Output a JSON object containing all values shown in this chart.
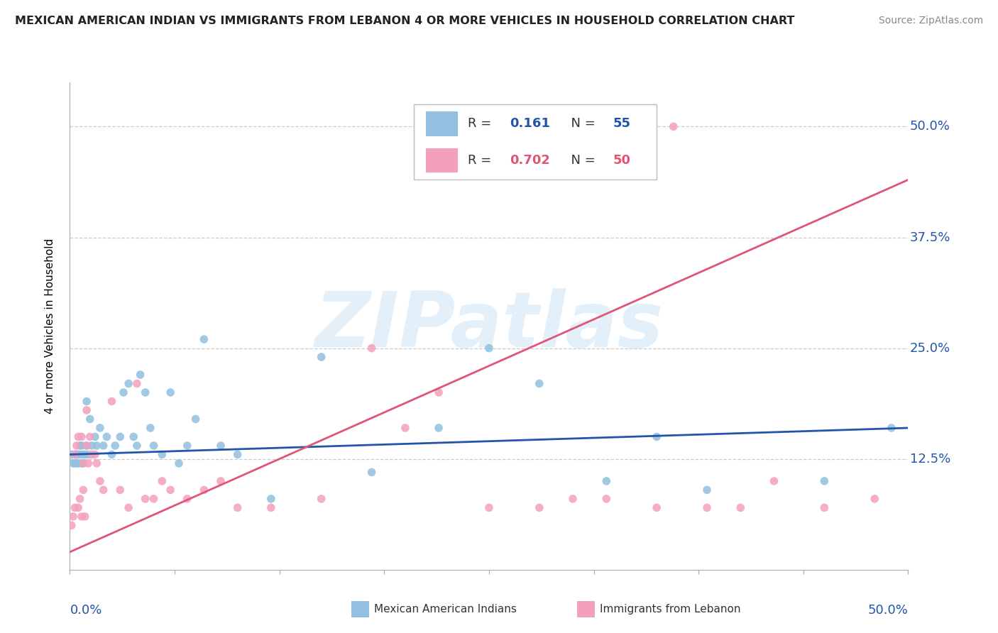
{
  "title": "MEXICAN AMERICAN INDIAN VS IMMIGRANTS FROM LEBANON 4 OR MORE VEHICLES IN HOUSEHOLD CORRELATION CHART",
  "source": "Source: ZipAtlas.com",
  "ylabel": "4 or more Vehicles in Household",
  "legend_blue_R": "0.161",
  "legend_blue_N": "55",
  "legend_pink_R": "0.702",
  "legend_pink_N": "50",
  "blue_color": "#92c0e0",
  "pink_color": "#f4a0bc",
  "blue_line_color": "#2255aa",
  "pink_line_color": "#e05575",
  "watermark": "ZIPatlas",
  "blue_scatter_x": [
    0.001,
    0.002,
    0.003,
    0.003,
    0.004,
    0.004,
    0.005,
    0.005,
    0.006,
    0.006,
    0.007,
    0.007,
    0.008,
    0.008,
    0.009,
    0.01,
    0.01,
    0.011,
    0.012,
    0.013,
    0.015,
    0.016,
    0.018,
    0.02,
    0.022,
    0.025,
    0.027,
    0.03,
    0.032,
    0.035,
    0.038,
    0.04,
    0.042,
    0.045,
    0.048,
    0.05,
    0.055,
    0.06,
    0.065,
    0.07,
    0.075,
    0.08,
    0.09,
    0.1,
    0.12,
    0.15,
    0.18,
    0.22,
    0.25,
    0.28,
    0.32,
    0.35,
    0.38,
    0.45,
    0.49
  ],
  "blue_scatter_y": [
    0.13,
    0.12,
    0.12,
    0.13,
    0.13,
    0.12,
    0.12,
    0.13,
    0.13,
    0.14,
    0.12,
    0.14,
    0.12,
    0.13,
    0.13,
    0.19,
    0.14,
    0.13,
    0.17,
    0.14,
    0.15,
    0.14,
    0.16,
    0.14,
    0.15,
    0.13,
    0.14,
    0.15,
    0.2,
    0.21,
    0.15,
    0.14,
    0.22,
    0.2,
    0.16,
    0.14,
    0.13,
    0.2,
    0.12,
    0.14,
    0.17,
    0.26,
    0.14,
    0.13,
    0.08,
    0.24,
    0.11,
    0.16,
    0.25,
    0.21,
    0.1,
    0.15,
    0.09,
    0.1,
    0.16
  ],
  "pink_scatter_x": [
    0.001,
    0.002,
    0.003,
    0.003,
    0.004,
    0.005,
    0.005,
    0.006,
    0.007,
    0.007,
    0.008,
    0.008,
    0.009,
    0.01,
    0.01,
    0.011,
    0.012,
    0.013,
    0.015,
    0.016,
    0.018,
    0.02,
    0.025,
    0.03,
    0.035,
    0.04,
    0.045,
    0.05,
    0.055,
    0.06,
    0.07,
    0.08,
    0.09,
    0.1,
    0.12,
    0.15,
    0.18,
    0.2,
    0.22,
    0.25,
    0.28,
    0.3,
    0.32,
    0.35,
    0.38,
    0.4,
    0.42,
    0.45,
    0.48,
    0.36
  ],
  "pink_scatter_y": [
    0.05,
    0.06,
    0.07,
    0.13,
    0.14,
    0.15,
    0.07,
    0.08,
    0.06,
    0.15,
    0.09,
    0.12,
    0.06,
    0.18,
    0.14,
    0.12,
    0.15,
    0.13,
    0.13,
    0.12,
    0.1,
    0.09,
    0.19,
    0.09,
    0.07,
    0.21,
    0.08,
    0.08,
    0.1,
    0.09,
    0.08,
    0.09,
    0.1,
    0.07,
    0.07,
    0.08,
    0.25,
    0.16,
    0.2,
    0.07,
    0.07,
    0.08,
    0.08,
    0.07,
    0.07,
    0.07,
    0.1,
    0.07,
    0.08,
    0.5
  ],
  "blue_line_x": [
    0.0,
    0.5
  ],
  "blue_line_y": [
    0.13,
    0.16
  ],
  "pink_line_x": [
    0.0,
    0.5
  ],
  "pink_line_y": [
    0.02,
    0.44
  ],
  "xlim": [
    0.0,
    0.5
  ],
  "ylim": [
    0.0,
    0.55
  ],
  "ytick_positions": [
    0.125,
    0.25,
    0.375,
    0.5
  ],
  "ytick_labels": [
    "12.5%",
    "25.0%",
    "37.5%",
    "50.0%"
  ],
  "xtick_positions": [
    0.0,
    0.0625,
    0.125,
    0.1875,
    0.25,
    0.3125,
    0.375,
    0.4375,
    0.5
  ],
  "background_color": "#ffffff",
  "grid_color": "#cccccc"
}
